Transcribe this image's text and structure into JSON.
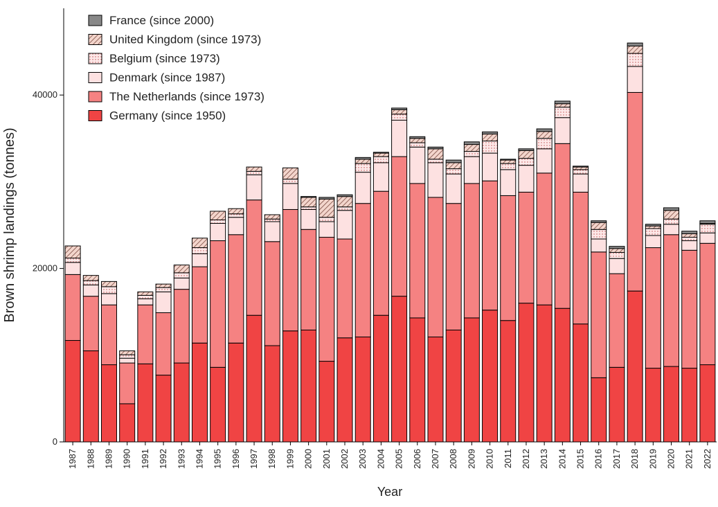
{
  "chart_data": {
    "type": "stacked_bar",
    "x_label": "Year",
    "y_label": "Brown shrimp landings (tonnes)",
    "categories": [
      "1987",
      "1988",
      "1989",
      "1990",
      "1991",
      "1992",
      "1993",
      "1994",
      "1995",
      "1996",
      "1997",
      "1998",
      "1999",
      "2000",
      "2001",
      "2002",
      "2003",
      "2004",
      "2005",
      "2006",
      "2007",
      "2008",
      "2009",
      "2010",
      "2011",
      "2012",
      "2013",
      "2014",
      "2015",
      "2016",
      "2017",
      "2018",
      "2019",
      "2020",
      "2021",
      "2022"
    ],
    "ylim": [
      0,
      50000
    ],
    "yticks": [
      0,
      20000,
      40000
    ],
    "legend": "upper left",
    "series": [
      {
        "name": "Germany (since 1950)",
        "color": "#f04444",
        "pattern": "solid",
        "values": [
          11700,
          10500,
          8900,
          4400,
          9000,
          7700,
          9100,
          11400,
          8600,
          11400,
          14600,
          11100,
          12800,
          12900,
          9300,
          12000,
          12100,
          14600,
          16800,
          14300,
          12100,
          12900,
          14300,
          15200,
          14000,
          16000,
          15800,
          15400,
          13600,
          7400,
          8600,
          17400,
          8500,
          8700,
          8500,
          8900
        ]
      },
      {
        "name": "The Netherlands (since 1973)",
        "color": "#f58282",
        "pattern": "solid",
        "values": [
          7600,
          6300,
          6900,
          4700,
          6800,
          7200,
          8500,
          8800,
          14600,
          12500,
          13300,
          12000,
          14000,
          11600,
          14300,
          11400,
          15400,
          14300,
          16100,
          15500,
          16100,
          14600,
          15500,
          14900,
          14400,
          12800,
          15200,
          19000,
          15200,
          14500,
          10800,
          22900,
          13900,
          15200,
          13600,
          14000
        ]
      },
      {
        "name": "Denmark (since 1987)",
        "color": "#fde1e1",
        "pattern": "solid",
        "values": [
          1400,
          1300,
          1300,
          550,
          700,
          2400,
          1300,
          1500,
          2000,
          2000,
          2900,
          2300,
          3000,
          2300,
          1800,
          3300,
          3600,
          3300,
          4200,
          4200,
          4000,
          3400,
          3100,
          3200,
          3000,
          3100,
          2800,
          3000,
          2100,
          1500,
          1750,
          3000,
          1400,
          1200,
          1100,
          1200
        ]
      },
      {
        "name": "Belgium (since 1973)",
        "color": "#fde8e8",
        "pattern": "dots",
        "values": [
          500,
          500,
          800,
          400,
          400,
          500,
          600,
          700,
          400,
          400,
          400,
          300,
          500,
          300,
          500,
          400,
          1000,
          700,
          700,
          500,
          400,
          600,
          600,
          1400,
          700,
          800,
          1200,
          1200,
          500,
          1100,
          700,
          1500,
          800,
          600,
          400,
          1000
        ]
      },
      {
        "name": "United Kingdom (since 1973)",
        "color": "#eec0b0",
        "pattern": "hatch",
        "values": [
          1400,
          600,
          600,
          450,
          400,
          400,
          900,
          1100,
          1000,
          600,
          500,
          500,
          1300,
          1100,
          2100,
          1200,
          500,
          400,
          500,
          500,
          1200,
          700,
          800,
          800,
          400,
          900,
          800,
          400,
          300,
          800,
          450,
          850,
          300,
          1000,
          400,
          100
        ]
      },
      {
        "name": "France (since 2000)",
        "color": "#888888",
        "pattern": "solid",
        "values": [
          null,
          null,
          null,
          null,
          null,
          null,
          null,
          null,
          null,
          null,
          null,
          null,
          null,
          100,
          200,
          200,
          200,
          100,
          200,
          200,
          200,
          300,
          300,
          250,
          100,
          200,
          300,
          300,
          100,
          200,
          250,
          350,
          200,
          300,
          300,
          300
        ]
      }
    ]
  }
}
